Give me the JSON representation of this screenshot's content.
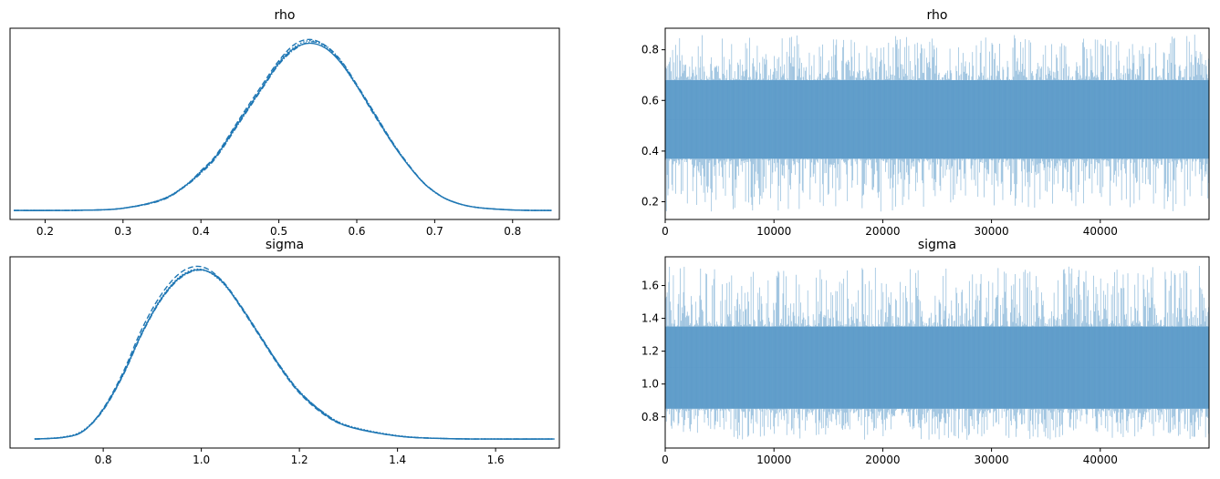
{
  "chart_data": [
    {
      "type": "line",
      "title": "rho",
      "xlabel": "",
      "ylabel": "",
      "xlim": [
        0.155,
        0.86
      ],
      "xticks": [
        "0.2",
        "0.3",
        "0.4",
        "0.5",
        "0.6",
        "0.7",
        "0.8"
      ],
      "xtick_values": [
        0.2,
        0.3,
        0.4,
        0.5,
        0.6,
        0.7,
        0.8
      ],
      "yticks": [],
      "y_axis_labels": false,
      "series": [
        {
          "style": "solid",
          "x": [
            0.16,
            0.25,
            0.3,
            0.35,
            0.38,
            0.4,
            0.42,
            0.45,
            0.48,
            0.5,
            0.52,
            0.54,
            0.56,
            0.58,
            0.6,
            0.62,
            0.65,
            0.68,
            0.7,
            0.72,
            0.75,
            0.8,
            0.85
          ],
          "y": [
            0.01,
            0.02,
            0.1,
            0.45,
            1.0,
            1.55,
            2.2,
            3.6,
            5.0,
            5.9,
            6.5,
            6.7,
            6.5,
            5.9,
            5.0,
            4.0,
            2.5,
            1.3,
            0.75,
            0.4,
            0.15,
            0.03,
            0.01
          ]
        },
        {
          "style": "dashed",
          "x": [
            0.16,
            0.25,
            0.3,
            0.35,
            0.38,
            0.4,
            0.42,
            0.45,
            0.48,
            0.5,
            0.52,
            0.54,
            0.56,
            0.58,
            0.6,
            0.62,
            0.65,
            0.68,
            0.7,
            0.72,
            0.75,
            0.8,
            0.85
          ],
          "y": [
            0.01,
            0.02,
            0.1,
            0.45,
            1.0,
            1.6,
            2.25,
            3.7,
            5.1,
            6.0,
            6.65,
            6.85,
            6.6,
            5.95,
            5.0,
            3.95,
            2.5,
            1.3,
            0.75,
            0.4,
            0.15,
            0.03,
            0.01
          ]
        },
        {
          "style": "dashdot",
          "x": [
            0.16,
            0.25,
            0.3,
            0.35,
            0.38,
            0.4,
            0.42,
            0.45,
            0.48,
            0.5,
            0.52,
            0.54,
            0.56,
            0.58,
            0.6,
            0.62,
            0.65,
            0.68,
            0.7,
            0.72,
            0.75,
            0.8,
            0.85
          ],
          "y": [
            0.01,
            0.02,
            0.1,
            0.42,
            0.98,
            1.5,
            2.15,
            3.55,
            4.95,
            5.85,
            6.45,
            6.75,
            6.6,
            6.0,
            5.05,
            4.05,
            2.55,
            1.32,
            0.76,
            0.4,
            0.15,
            0.03,
            0.01
          ]
        },
        {
          "style": "dotted",
          "x": [
            0.16,
            0.25,
            0.3,
            0.35,
            0.38,
            0.4,
            0.42,
            0.45,
            0.48,
            0.5,
            0.52,
            0.54,
            0.56,
            0.58,
            0.6,
            0.62,
            0.65,
            0.68,
            0.7,
            0.72,
            0.75,
            0.8,
            0.85
          ],
          "y": [
            0.01,
            0.02,
            0.1,
            0.46,
            1.02,
            1.58,
            2.2,
            3.65,
            5.0,
            5.95,
            6.55,
            6.8,
            6.55,
            5.9,
            4.98,
            4.0,
            2.52,
            1.3,
            0.74,
            0.4,
            0.15,
            0.03,
            0.01
          ]
        }
      ],
      "ylim": [
        -0.35,
        7.3
      ],
      "color": "#1f77b4"
    },
    {
      "type": "line",
      "title": "rho",
      "xlabel": "",
      "ylabel": "",
      "xlim": [
        0,
        50000
      ],
      "xticks": [
        "0",
        "10000",
        "20000",
        "30000",
        "40000"
      ],
      "xtick_values": [
        0,
        10000,
        20000,
        30000,
        40000
      ],
      "yticks": [
        "0.2",
        "0.4",
        "0.6",
        "0.8"
      ],
      "ytick_values": [
        0.2,
        0.4,
        0.6,
        0.8
      ],
      "ylim": [
        0.13,
        0.885
      ],
      "draws": 50000,
      "chains": 4,
      "band": {
        "low": 0.37,
        "high": 0.68
      },
      "extremes": {
        "min": 0.16,
        "max": 0.86
      },
      "color": "#1f77b4"
    },
    {
      "type": "line",
      "title": "sigma",
      "xlabel": "",
      "ylabel": "",
      "xlim": [
        0.61,
        1.73
      ],
      "xticks": [
        "0.8",
        "1.0",
        "1.2",
        "1.4",
        "1.6"
      ],
      "xtick_values": [
        0.8,
        1.0,
        1.2,
        1.4,
        1.6
      ],
      "yticks": [],
      "y_axis_labels": false,
      "series": [
        {
          "style": "solid",
          "x": [
            0.66,
            0.72,
            0.76,
            0.8,
            0.84,
            0.88,
            0.92,
            0.96,
            1.0,
            1.04,
            1.08,
            1.12,
            1.16,
            1.2,
            1.25,
            1.3,
            1.4,
            1.5,
            1.6,
            1.72
          ],
          "y": [
            0.01,
            0.05,
            0.2,
            0.7,
            1.5,
            2.5,
            3.3,
            3.8,
            3.95,
            3.7,
            3.1,
            2.4,
            1.7,
            1.1,
            0.6,
            0.3,
            0.08,
            0.02,
            0.01,
            0.01
          ]
        },
        {
          "style": "dashed",
          "x": [
            0.66,
            0.72,
            0.76,
            0.8,
            0.84,
            0.88,
            0.92,
            0.96,
            1.0,
            1.04,
            1.08,
            1.12,
            1.16,
            1.2,
            1.25,
            1.3,
            1.4,
            1.5,
            1.6,
            1.72
          ],
          "y": [
            0.01,
            0.05,
            0.2,
            0.72,
            1.55,
            2.6,
            3.4,
            3.9,
            4.02,
            3.72,
            3.08,
            2.38,
            1.68,
            1.08,
            0.58,
            0.3,
            0.08,
            0.02,
            0.01,
            0.01
          ]
        },
        {
          "style": "dashdot",
          "x": [
            0.66,
            0.72,
            0.76,
            0.8,
            0.84,
            0.88,
            0.92,
            0.96,
            1.0,
            1.04,
            1.08,
            1.12,
            1.16,
            1.2,
            1.25,
            1.3,
            1.4,
            1.5,
            1.6,
            1.72
          ],
          "y": [
            0.01,
            0.05,
            0.2,
            0.68,
            1.48,
            2.48,
            3.28,
            3.78,
            3.94,
            3.72,
            3.12,
            2.42,
            1.72,
            1.12,
            0.62,
            0.31,
            0.08,
            0.02,
            0.01,
            0.01
          ]
        },
        {
          "style": "dotted",
          "x": [
            0.66,
            0.72,
            0.76,
            0.8,
            0.84,
            0.88,
            0.92,
            0.96,
            1.0,
            1.04,
            1.08,
            1.12,
            1.16,
            1.2,
            1.25,
            1.3,
            1.4,
            1.5,
            1.6,
            1.72
          ],
          "y": [
            0.01,
            0.06,
            0.22,
            0.7,
            1.5,
            2.52,
            3.32,
            3.82,
            3.96,
            3.68,
            3.1,
            2.4,
            1.72,
            1.12,
            0.62,
            0.32,
            0.09,
            0.02,
            0.01,
            0.01
          ]
        }
      ],
      "ylim": [
        -0.2,
        4.25
      ],
      "color": "#1f77b4"
    },
    {
      "type": "line",
      "title": "sigma",
      "xlabel": "",
      "ylabel": "",
      "xlim": [
        0,
        50000
      ],
      "xticks": [
        "0",
        "10000",
        "20000",
        "30000",
        "40000"
      ],
      "xtick_values": [
        0,
        10000,
        20000,
        30000,
        40000
      ],
      "yticks": [
        "0.8",
        "1.0",
        "1.2",
        "1.4",
        "1.6"
      ],
      "ytick_values": [
        0.8,
        1.0,
        1.2,
        1.4,
        1.6
      ],
      "ylim": [
        0.61,
        1.775
      ],
      "draws": 50000,
      "chains": 4,
      "band": {
        "low": 0.85,
        "high": 1.35
      },
      "extremes": {
        "min": 0.66,
        "max": 1.72
      },
      "color": "#1f77b4"
    }
  ]
}
